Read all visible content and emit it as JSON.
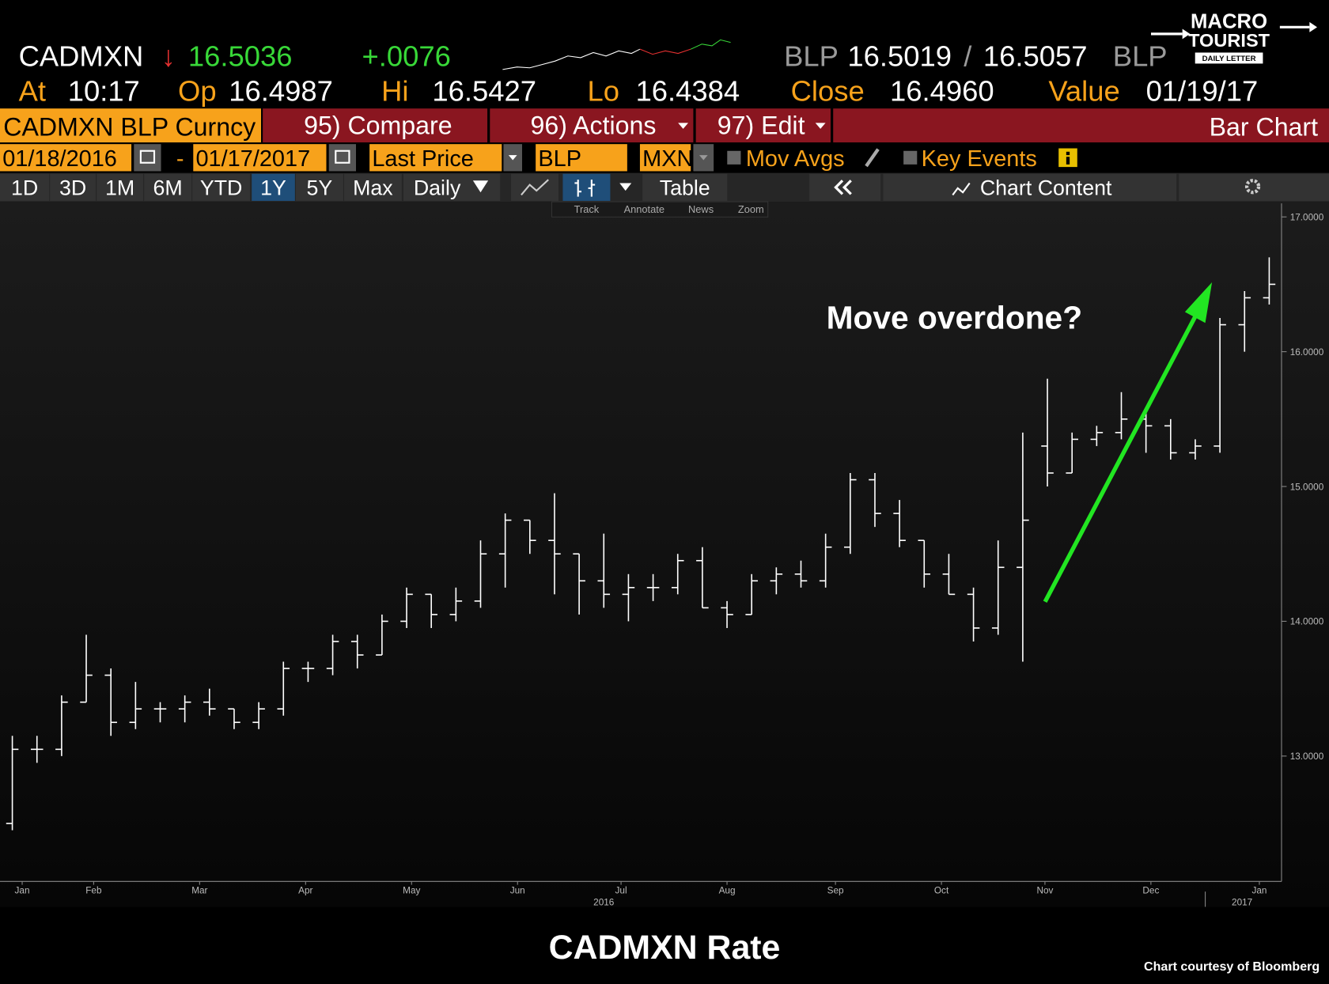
{
  "header": {
    "ticker": "CADMXN",
    "direction": "↓",
    "last": "16.5036",
    "change": "+.0076",
    "bid_source": "BLP",
    "bid": "16.5019",
    "separator": "/",
    "ask": "16.5057",
    "ask_source": "BLP",
    "at_label": "At",
    "time": "10:17",
    "open_label": "Op",
    "open": "16.4987",
    "high_label": "Hi",
    "high": "16.5427",
    "low_label": "Lo",
    "low": "16.4384",
    "close_label": "Close",
    "close": "16.4960",
    "value_label": "Value",
    "value_date": "01/19/17"
  },
  "logo": {
    "line1": "MACRO",
    "line2": "TOURIST",
    "line3": "DAILY LETTER"
  },
  "toolbar": {
    "security": "CADMXN BLP Curncy",
    "compare": "95) Compare",
    "actions": "96) Actions",
    "edit": "97) Edit",
    "view": "Bar Chart"
  },
  "settings": {
    "start_date": "01/18/2016",
    "date_separator": "-",
    "end_date": "01/17/2017",
    "field": "Last Price",
    "source": "BLP",
    "currency": "MXN",
    "moving_averages": "Mov Avgs",
    "key_events": "Key Events"
  },
  "periods": [
    "1D",
    "3D",
    "1M",
    "6M",
    "YTD",
    "1Y",
    "5Y",
    "Max"
  ],
  "frequency": "Daily",
  "table": "Table",
  "chart_content": "Chart Content",
  "tools": [
    "Track",
    "Annotate",
    "News",
    "Zoom"
  ],
  "chart_data": {
    "type": "ohlc",
    "title": "CADMXN Rate",
    "source_note": "Chart courtesy of Bloomberg",
    "annotation": "Move overdone?",
    "arrow_color": "#22e622",
    "color": "#ffffff",
    "grid": false,
    "xlim": [
      0,
      52
    ],
    "ylim": [
      12.07,
      17.1
    ],
    "xticks": [
      {
        "value": 0.9,
        "label": "Jan"
      },
      {
        "value": 3.8,
        "label": "Feb"
      },
      {
        "value": 8.1,
        "label": "Mar"
      },
      {
        "value": 12.4,
        "label": "Apr"
      },
      {
        "value": 16.7,
        "label": "May"
      },
      {
        "value": 21.0,
        "label": "Jun"
      },
      {
        "value": 25.2,
        "label": "Jul"
      },
      {
        "value": 29.5,
        "label": "Aug"
      },
      {
        "value": 33.9,
        "label": "Sep"
      },
      {
        "value": 38.2,
        "label": "Oct"
      },
      {
        "value": 42.4,
        "label": "Nov"
      },
      {
        "value": 46.7,
        "label": "Dec"
      },
      {
        "value": 51.1,
        "label": "Jan"
      }
    ],
    "year_labels": [
      {
        "value": 24.5,
        "label": "2016"
      },
      {
        "value": 50.4,
        "label": "2017"
      }
    ],
    "yticks": [
      {
        "value": 13,
        "label": "13.0000"
      },
      {
        "value": 14,
        "label": "14.0000"
      },
      {
        "value": 15,
        "label": "15.0000"
      },
      {
        "value": 16,
        "label": "16.0000"
      },
      {
        "value": 17,
        "label": "17.0000"
      }
    ],
    "open": [
      12.5,
      13.05,
      13.05,
      13.4,
      13.6,
      13.25,
      13.35,
      13.35,
      13.4,
      13.35,
      13.25,
      13.35,
      13.65,
      13.65,
      13.85,
      13.75,
      14.0,
      14.2,
      14.05,
      14.15,
      14.5,
      14.75,
      14.6,
      14.5,
      14.3,
      14.2,
      14.25,
      14.25,
      14.45,
      14.1,
      14.05,
      14.3,
      14.35,
      14.3,
      14.55,
      15.05,
      14.8,
      14.6,
      14.35,
      14.2,
      13.95,
      14.4,
      15.3,
      15.1,
      15.35,
      15.4,
      15.5,
      15.45,
      15.25,
      15.3,
      16.2,
      16.4
    ],
    "high": [
      13.15,
      13.15,
      13.45,
      13.9,
      13.65,
      13.55,
      13.4,
      13.45,
      13.5,
      13.35,
      13.4,
      13.7,
      13.7,
      13.9,
      13.9,
      14.05,
      14.25,
      14.2,
      14.25,
      14.6,
      14.8,
      14.75,
      14.95,
      14.5,
      14.65,
      14.35,
      14.35,
      14.5,
      14.55,
      14.15,
      14.35,
      14.4,
      14.45,
      14.65,
      15.1,
      15.1,
      14.9,
      14.6,
      14.5,
      14.25,
      14.6,
      15.4,
      15.8,
      15.4,
      15.45,
      15.7,
      15.55,
      15.5,
      15.35,
      16.25,
      16.45,
      16.7
    ],
    "low": [
      12.45,
      12.95,
      13.0,
      13.4,
      13.15,
      13.2,
      13.25,
      13.25,
      13.3,
      13.2,
      13.2,
      13.3,
      13.55,
      13.6,
      13.65,
      13.75,
      13.95,
      13.95,
      14.0,
      14.1,
      14.25,
      14.5,
      14.2,
      14.05,
      14.1,
      14.0,
      14.15,
      14.2,
      14.1,
      13.95,
      14.05,
      14.2,
      14.25,
      14.25,
      14.5,
      14.7,
      14.55,
      14.25,
      14.2,
      13.85,
      13.9,
      13.7,
      15.0,
      15.1,
      15.3,
      15.35,
      15.25,
      15.2,
      15.2,
      15.25,
      16.0,
      16.35
    ],
    "close": [
      13.05,
      13.05,
      13.4,
      13.6,
      13.25,
      13.35,
      13.35,
      13.4,
      13.35,
      13.25,
      13.35,
      13.65,
      13.65,
      13.85,
      13.75,
      14.0,
      14.2,
      14.05,
      14.15,
      14.5,
      14.75,
      14.6,
      14.5,
      14.3,
      14.2,
      14.25,
      14.25,
      14.45,
      14.1,
      14.05,
      14.3,
      14.35,
      14.3,
      14.55,
      15.05,
      14.8,
      14.6,
      14.35,
      14.2,
      13.95,
      14.4,
      14.75,
      15.1,
      15.35,
      15.4,
      15.5,
      15.45,
      15.25,
      15.3,
      16.2,
      16.4,
      16.5
    ]
  }
}
